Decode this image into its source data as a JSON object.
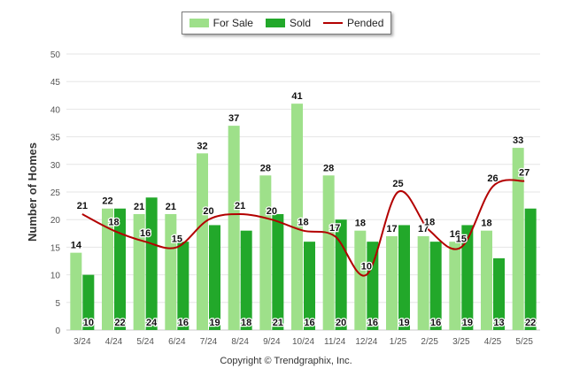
{
  "legend": {
    "for_sale_label": "For Sale",
    "sold_label": "Sold",
    "pended_label": "Pended"
  },
  "colors": {
    "for_sale": "#9ee08a",
    "sold": "#22a82a",
    "pended": "#b30000",
    "grid": "#e6e6e6",
    "axis_text": "#555555"
  },
  "footer": {
    "copyright": "Copyright © Trendgraphix, Inc."
  },
  "chart_data": {
    "type": "bar",
    "categories": [
      "3/24",
      "4/24",
      "5/24",
      "6/24",
      "7/24",
      "8/24",
      "9/24",
      "10/24",
      "11/24",
      "12/24",
      "1/25",
      "2/25",
      "3/25",
      "4/25",
      "5/25"
    ],
    "series": [
      {
        "name": "For Sale",
        "type": "bar",
        "values": [
          14,
          22,
          21,
          21,
          32,
          37,
          28,
          41,
          28,
          18,
          17,
          17,
          16,
          18,
          33
        ]
      },
      {
        "name": "Sold",
        "type": "bar",
        "values": [
          10,
          22,
          24,
          16,
          19,
          18,
          21,
          16,
          20,
          16,
          19,
          16,
          19,
          13,
          22
        ]
      },
      {
        "name": "Pended",
        "type": "line",
        "values": [
          21,
          18,
          16,
          15,
          20,
          21,
          20,
          18,
          17,
          10,
          25,
          18,
          15,
          26,
          27
        ]
      }
    ],
    "ylabel": "Number of Homes",
    "xlabel": "",
    "ylim": [
      0,
      50
    ],
    "yticks": [
      0,
      5,
      10,
      15,
      20,
      25,
      30,
      35,
      40,
      45,
      50
    ],
    "grid": true,
    "legend_position": "top-center"
  }
}
